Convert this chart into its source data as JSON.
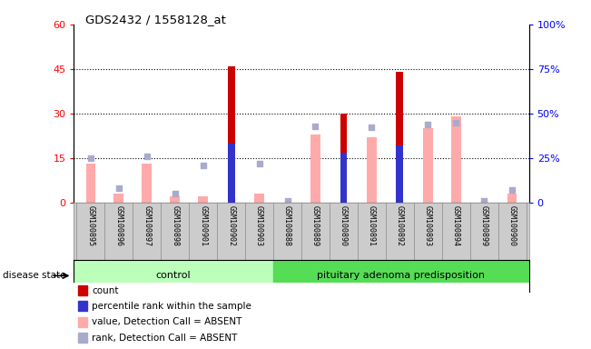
{
  "title": "GDS2432 / 1558128_at",
  "samples": [
    "GSM100895",
    "GSM100896",
    "GSM100897",
    "GSM100898",
    "GSM100901",
    "GSM100902",
    "GSM100903",
    "GSM100888",
    "GSM100889",
    "GSM100890",
    "GSM100891",
    "GSM100892",
    "GSM100893",
    "GSM100894",
    "GSM100899",
    "GSM100900"
  ],
  "n_control": 7,
  "n_adenoma": 9,
  "count": [
    0,
    0,
    0,
    0,
    0,
    46,
    0,
    0,
    0,
    30,
    0,
    44,
    0,
    0,
    0,
    0
  ],
  "percentile": [
    0,
    0,
    0,
    0,
    0,
    33,
    0,
    0,
    0,
    28,
    0,
    32,
    0,
    0,
    0,
    0
  ],
  "value_absent": [
    13,
    3,
    13,
    2,
    2,
    0,
    3,
    0,
    23,
    0,
    22,
    0,
    25,
    29,
    0,
    3
  ],
  "rank_absent_pct": [
    25,
    8,
    26,
    5,
    21,
    1,
    22,
    1,
    43,
    0,
    42,
    0,
    44,
    45,
    1,
    7
  ],
  "ylim_left": [
    0,
    60
  ],
  "ylim_right": [
    0,
    100
  ],
  "yticks_left": [
    0,
    15,
    30,
    45,
    60
  ],
  "ytick_labels_left": [
    "0",
    "15",
    "30",
    "45",
    "60"
  ],
  "yticks_right": [
    0,
    25,
    50,
    75,
    100
  ],
  "ytick_labels_right": [
    "0",
    "25%",
    "50%",
    "75%",
    "100%"
  ],
  "color_count": "#cc0000",
  "color_percentile": "#3333cc",
  "color_value_absent": "#ffaaaa",
  "color_rank_absent": "#aaaacc",
  "control_color": "#bbffbb",
  "adenoma_color": "#55dd55",
  "bg_color": "#cccccc",
  "legend_items": [
    "count",
    "percentile rank within the sample",
    "value, Detection Call = ABSENT",
    "rank, Detection Call = ABSENT"
  ],
  "legend_colors": [
    "#cc0000",
    "#3333cc",
    "#ffaaaa",
    "#aaaacc"
  ]
}
